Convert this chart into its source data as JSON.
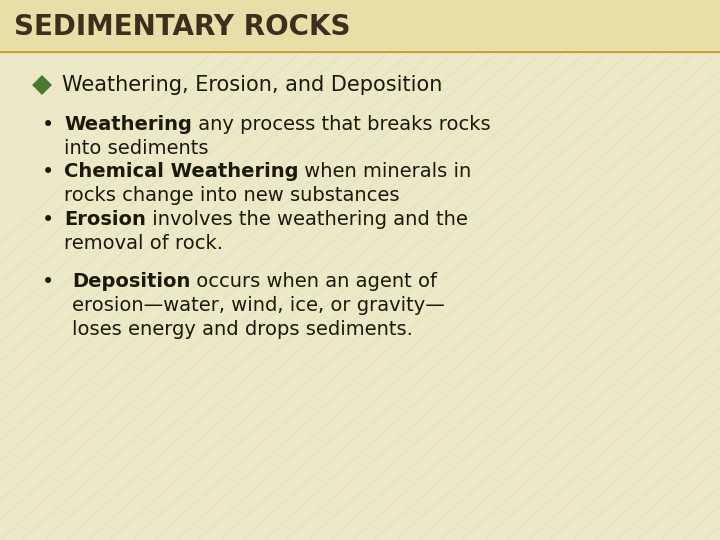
{
  "title": "SEDIMENTARY ROCKS",
  "title_color": "#3d2e1e",
  "bg_color": "#f0e8c8",
  "bg_color_bottom": "#d8c070",
  "stripe_color": "#c8a828",
  "title_band_color": "#ede0b0",
  "line_color": "#c8a030",
  "diamond_color": "#4a7a30",
  "text_color": "#1a1a0a",
  "bullet_header": "Weathering, Erosion, and Deposition",
  "b1_bold": "Weathering",
  "b1_rest": " any process that breaks rocks",
  "b1_line2": "into sediments",
  "b2_bold": "Chemical Weathering",
  "b2_rest": " when minerals in",
  "b2_line2": "rocks change into new substances",
  "b3_bold": "Erosion",
  "b3_rest": " involves the weathering and the",
  "b3_line2": "removal of rock.",
  "b4_bold": "Deposition",
  "b4_rest": " occurs when an agent of",
  "b4_line2": "erosion—water, wind, ice, or gravity—",
  "b4_line3": "loses energy and drops sediments.",
  "title_fontsize": 20,
  "header_fontsize": 15,
  "body_fontsize": 14
}
